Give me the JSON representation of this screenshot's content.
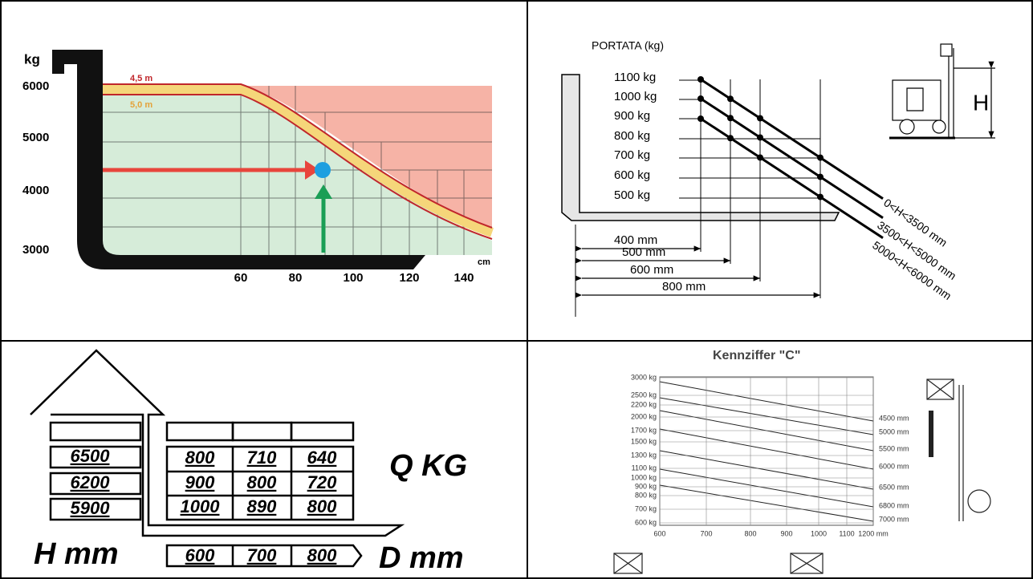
{
  "top_left": {
    "unit_y": "kg",
    "ylabels": [
      "6000",
      "5000",
      "4000",
      "3000"
    ],
    "curves": [
      "4,5 m",
      "5,0 m"
    ],
    "unit_x": "cm",
    "xlabels": [
      "60",
      "80",
      "100",
      "120",
      "140"
    ]
  },
  "top_right": {
    "title": "PORTATA (kg)",
    "loads": [
      "1100 kg",
      "1000 kg",
      "900 kg",
      "800 kg",
      "700 kg",
      "600 kg",
      "500 kg"
    ],
    "distances": [
      "400 mm",
      "500 mm",
      "600 mm",
      "800 mm"
    ],
    "heights": [
      "0<H<3500 mm",
      "3500<H<5000 mm",
      "5000<H<6000 mm"
    ],
    "icon_label": "H"
  },
  "bottom_left": {
    "heights": [
      "6500",
      "6200",
      "5900"
    ],
    "table": {
      "rows": [
        [
          "800",
          "710",
          "640"
        ],
        [
          "900",
          "800",
          "720"
        ],
        [
          "1000",
          "890",
          "800"
        ]
      ]
    },
    "q_label": "Q  KG",
    "h_label": "H mm",
    "depths": [
      "600",
      "700",
      "800"
    ],
    "d_label": "D  mm"
  },
  "bottom_right": {
    "title": "Kennziffer \"C\"",
    "ylabels": [
      "3000 kg",
      "2500 kg",
      "2200 kg",
      "2000 kg",
      "1700 kg",
      "1500 kg",
      "1300 kg",
      "1100 kg",
      "1000 kg",
      "900 kg",
      "800 kg",
      "700 kg",
      "600 kg"
    ],
    "xlabels": [
      "600",
      "700",
      "800",
      "900",
      "1000",
      "1100",
      "1200 mm"
    ],
    "heights": [
      "4500 mm",
      "5000 mm",
      "5500 mm",
      "6000 mm",
      "6500 mm",
      "6800 mm",
      "7000 mm"
    ]
  }
}
